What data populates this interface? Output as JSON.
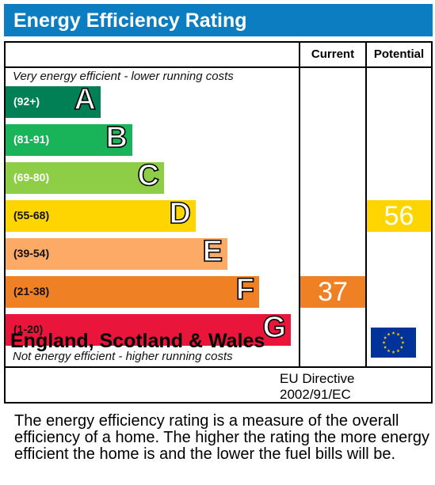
{
  "title": "Energy Efficiency Rating",
  "columns": {
    "current": "Current",
    "potential": "Potential"
  },
  "top_note": "Very energy efficient - lower running costs",
  "bottom_note": "Not energy efficient - higher running costs",
  "footer": {
    "country": "England, Scotland & Wales",
    "directive_line1": "EU Directive",
    "directive_line2": "2002/91/EC"
  },
  "description": "The energy efficiency rating is a measure of the overall efficiency of a home. The higher the rating the more energy efficient the home is and the lower the fuel bills will be.",
  "colors": {
    "title_bar": "#0c7dc1",
    "A": "#008054",
    "B": "#19b459",
    "C": "#8dce46",
    "D": "#ffd500",
    "E": "#fcaa65",
    "F": "#ef8023",
    "G": "#e9153b",
    "eu_flag": "#003399",
    "eu_star": "#ffcc00"
  },
  "chart_data": {
    "type": "bar",
    "title": "Energy Efficiency Rating",
    "bands": [
      {
        "letter": "A",
        "range": "(92+)"
      },
      {
        "letter": "B",
        "range": "(81-91)"
      },
      {
        "letter": "C",
        "range": "(69-80)"
      },
      {
        "letter": "D",
        "range": "(55-68)"
      },
      {
        "letter": "E",
        "range": "(39-54)"
      },
      {
        "letter": "F",
        "range": "(21-38)"
      },
      {
        "letter": "G",
        "range": "(1-20)"
      }
    ],
    "current": {
      "value": 37,
      "band": "F"
    },
    "potential": {
      "value": 56,
      "band": "D"
    }
  }
}
